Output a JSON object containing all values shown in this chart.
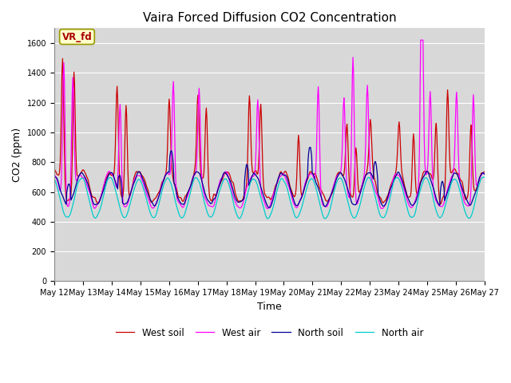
{
  "title": "Vaira Forced Diffusion CO2 Concentration",
  "xlabel": "Time",
  "ylabel": "CO2 (ppm)",
  "ylim": [
    0,
    1700
  ],
  "yticks": [
    0,
    200,
    400,
    600,
    800,
    1000,
    1200,
    1400,
    1600
  ],
  "annotation_text": "VR_fd",
  "colors": {
    "west_soil": "#cc0000",
    "west_air": "#ff00ff",
    "north_soil": "#000099",
    "north_air": "#00cccc"
  },
  "legend_labels": [
    "West soil",
    "West air",
    "North soil",
    "North air"
  ],
  "bg_color": "#d8d8d8",
  "n_days": 15,
  "pts_per_day": 48,
  "start_day": 12,
  "title_fontsize": 11,
  "axis_fontsize": 9,
  "tick_fontsize": 7
}
